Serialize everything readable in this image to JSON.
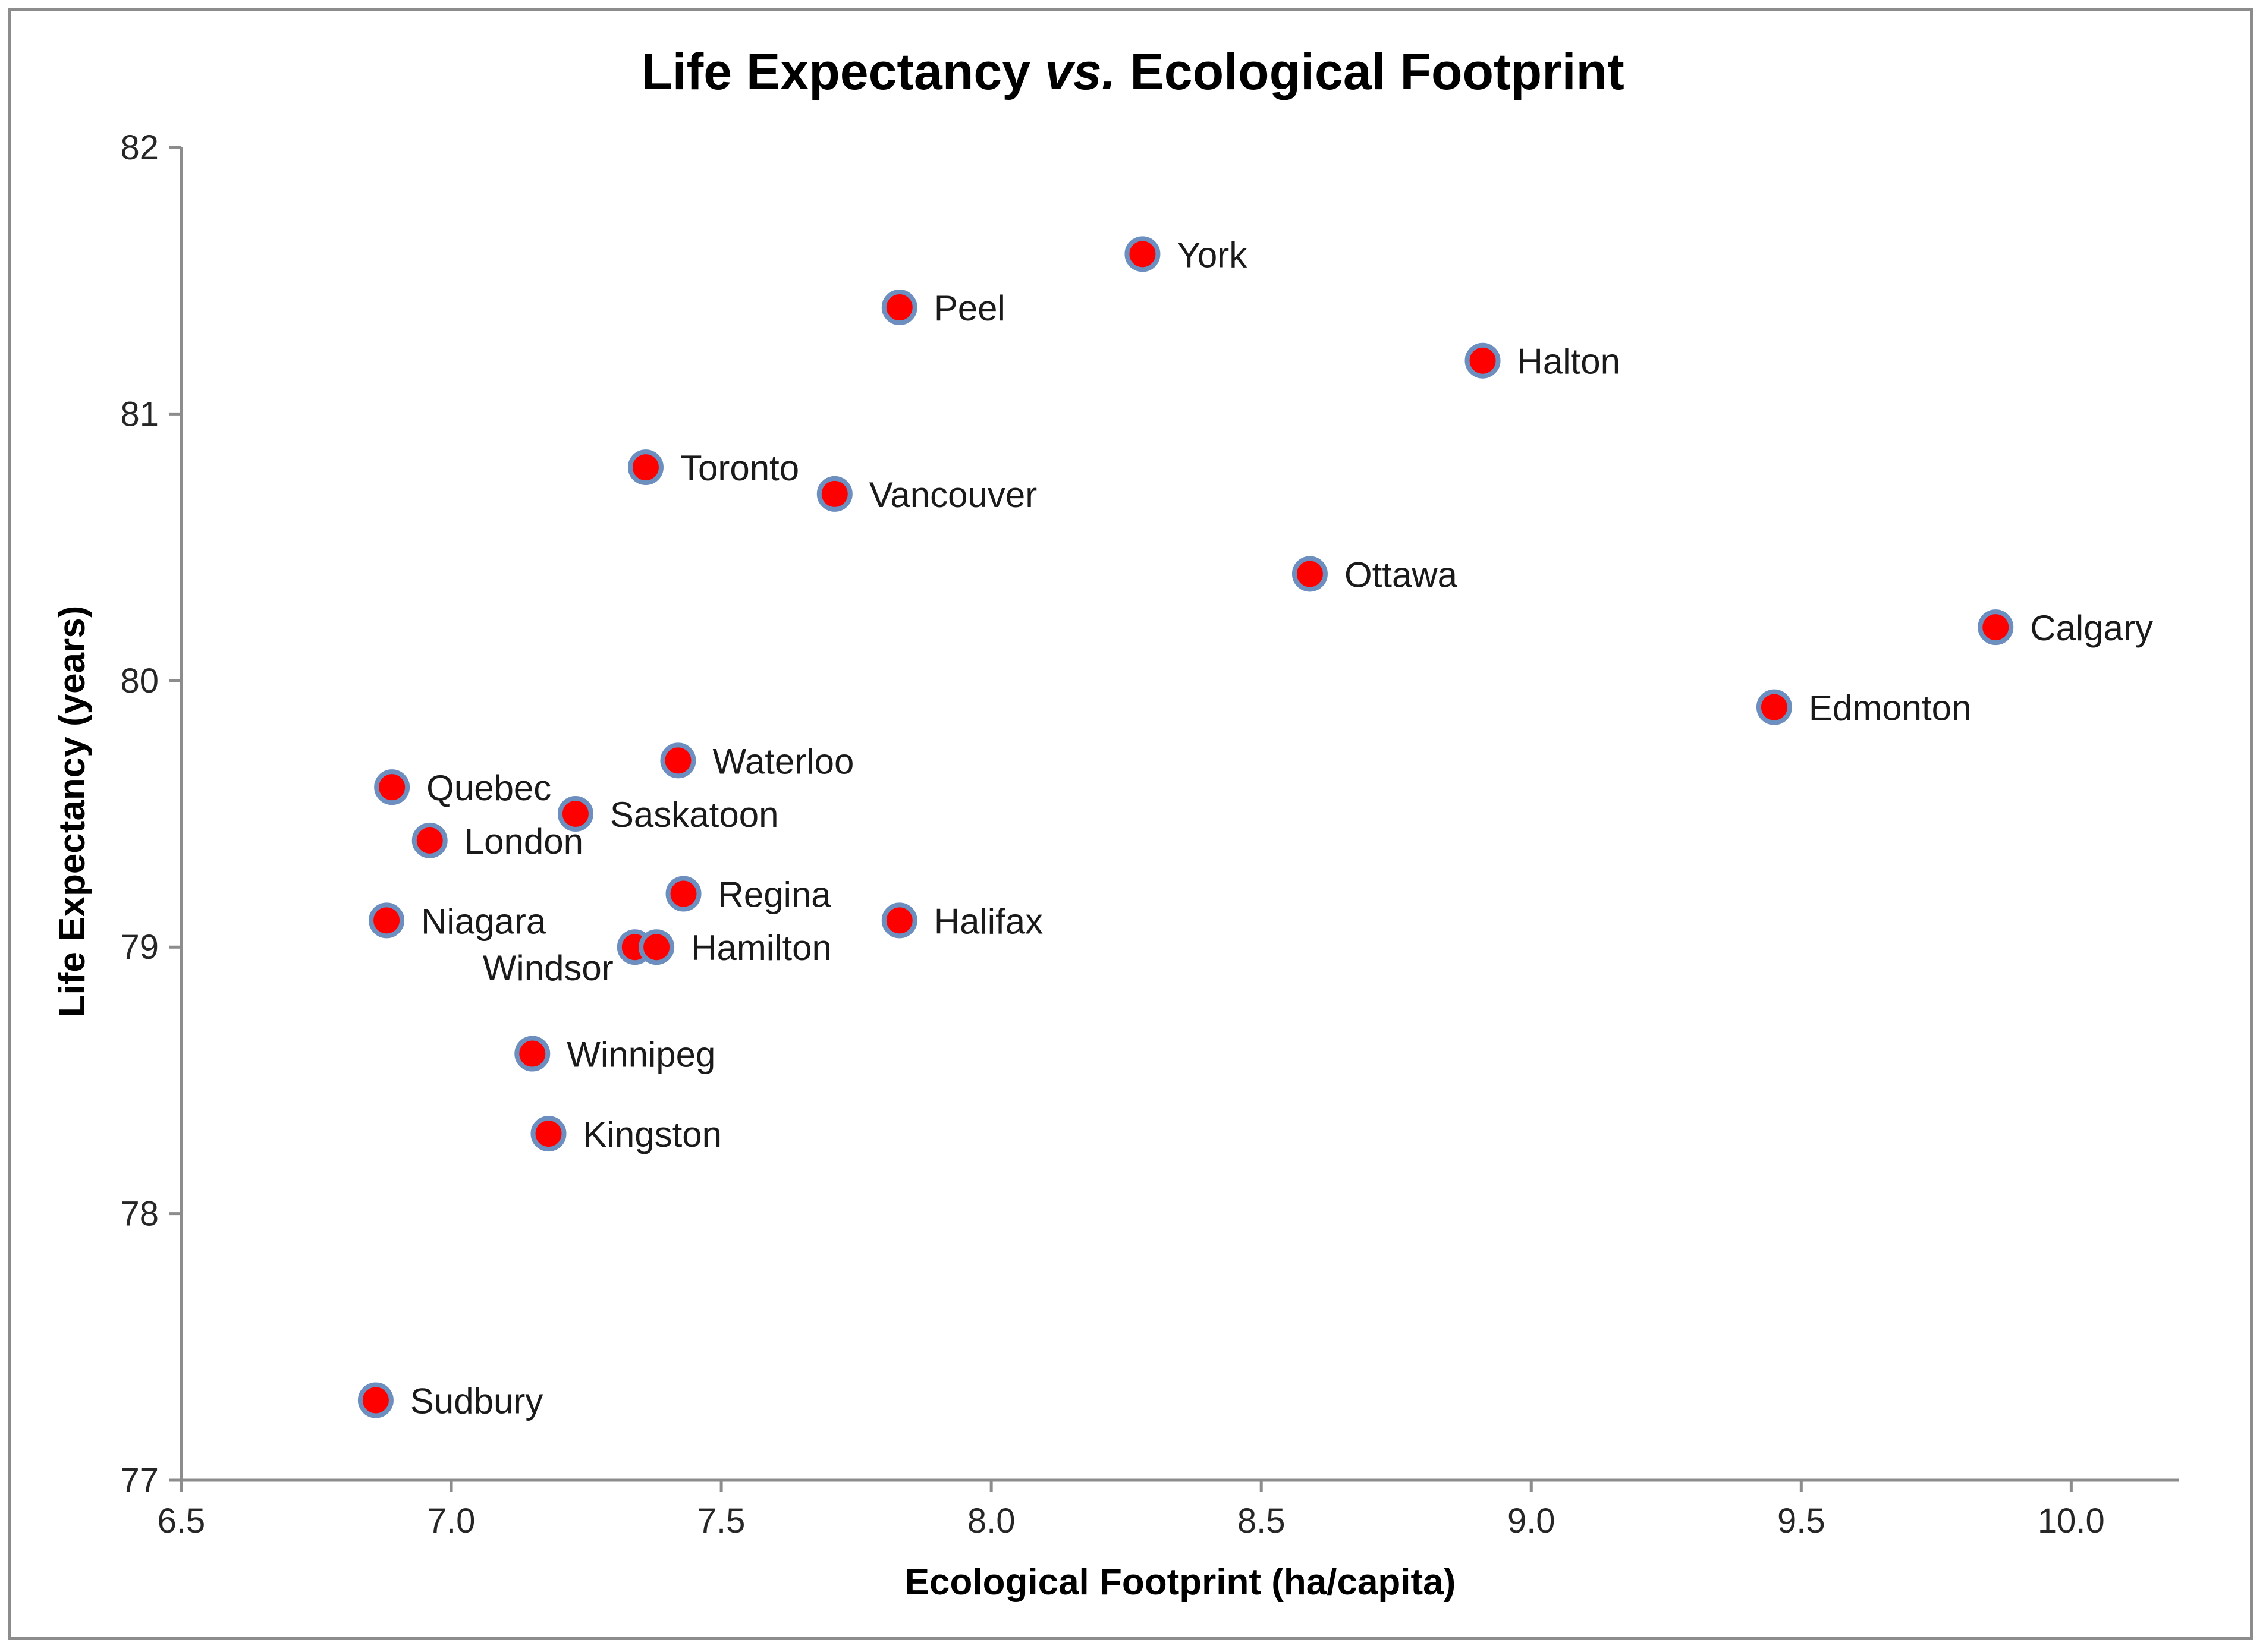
{
  "chart_data": {
    "type": "scatter",
    "title_part1": "Life Expectancy ",
    "title_italic": "vs.",
    "title_part2": " Ecological Footprint",
    "xlabel": "Ecological Footprint (ha/capita)",
    "ylabel": "Life Expectancy (years)",
    "xlim": [
      6.5,
      10.2
    ],
    "ylim": [
      77,
      82
    ],
    "xticks": [
      "6.5",
      "7.0",
      "7.5",
      "8.0",
      "8.5",
      "9.0",
      "9.5",
      "10.0"
    ],
    "yticks": [
      "77",
      "78",
      "79",
      "80",
      "81",
      "82"
    ],
    "marker_color": "#ff0000",
    "marker_edge_color": "#6d8fbf",
    "points": [
      {
        "label": "York",
        "x": 8.28,
        "y": 81.6,
        "anchor": "right"
      },
      {
        "label": "Peel",
        "x": 7.83,
        "y": 81.4,
        "anchor": "right"
      },
      {
        "label": "Halton",
        "x": 8.91,
        "y": 81.2,
        "anchor": "right"
      },
      {
        "label": "Toronto",
        "x": 7.36,
        "y": 80.8,
        "anchor": "right"
      },
      {
        "label": "Vancouver",
        "x": 7.71,
        "y": 80.7,
        "anchor": "right"
      },
      {
        "label": "Ottawa",
        "x": 8.59,
        "y": 80.4,
        "anchor": "right"
      },
      {
        "label": "Calgary",
        "x": 9.86,
        "y": 80.2,
        "anchor": "right"
      },
      {
        "label": "Edmonton",
        "x": 9.45,
        "y": 79.9,
        "anchor": "right"
      },
      {
        "label": "Waterloo",
        "x": 7.42,
        "y": 79.7,
        "anchor": "right"
      },
      {
        "label": "Quebec",
        "x": 6.89,
        "y": 79.6,
        "anchor": "right"
      },
      {
        "label": "Saskatoon",
        "x": 7.23,
        "y": 79.5,
        "anchor": "right"
      },
      {
        "label": "London",
        "x": 6.96,
        "y": 79.4,
        "anchor": "right"
      },
      {
        "label": "Regina",
        "x": 7.43,
        "y": 79.2,
        "anchor": "right"
      },
      {
        "label": "Niagara",
        "x": 6.88,
        "y": 79.1,
        "anchor": "right"
      },
      {
        "label": "Halifax",
        "x": 7.83,
        "y": 79.1,
        "anchor": "right"
      },
      {
        "label": "Windsor",
        "x": 7.34,
        "y": 79.0,
        "anchor": "below-left"
      },
      {
        "label": "Hamilton",
        "x": 7.38,
        "y": 79.0,
        "anchor": "right"
      },
      {
        "label": "Winnipeg",
        "x": 7.15,
        "y": 78.6,
        "anchor": "right"
      },
      {
        "label": "Kingston",
        "x": 7.18,
        "y": 78.3,
        "anchor": "right"
      },
      {
        "label": "Sudbury",
        "x": 6.86,
        "y": 77.3,
        "anchor": "right"
      }
    ]
  }
}
